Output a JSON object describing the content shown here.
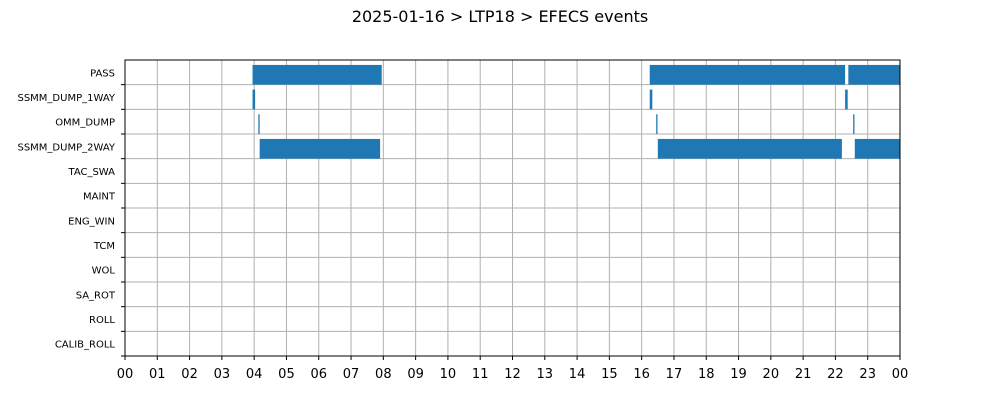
{
  "chart_data": {
    "type": "bar",
    "orientation": "horizontal",
    "title": "2025-01-16 > LTP18 > EFECS events",
    "xlabel": "",
    "ylabel": "",
    "xlim": [
      0,
      24
    ],
    "x_ticks": [
      "00",
      "01",
      "02",
      "03",
      "04",
      "05",
      "06",
      "07",
      "08",
      "09",
      "10",
      "11",
      "12",
      "13",
      "14",
      "15",
      "16",
      "17",
      "18",
      "19",
      "20",
      "21",
      "22",
      "23",
      "00"
    ],
    "categories": [
      "PASS",
      "SSMM_DUMP_1WAY",
      "OMM_DUMP",
      "SSMM_DUMP_2WAY",
      "TAC_SWA",
      "MAINT",
      "ENG_WIN",
      "TCM",
      "WOL",
      "SA_ROT",
      "ROLL",
      "CALIB_ROLL"
    ],
    "grid": true,
    "bar_color": "#1f77b4",
    "series": [
      {
        "category": "PASS",
        "intervals": [
          [
            3.95,
            7.95
          ],
          [
            16.25,
            22.3
          ],
          [
            22.4,
            24.0
          ]
        ]
      },
      {
        "category": "SSMM_DUMP_1WAY",
        "intervals": [
          [
            3.95,
            4.03
          ],
          [
            16.25,
            16.33
          ],
          [
            22.3,
            22.38
          ]
        ]
      },
      {
        "category": "OMM_DUMP",
        "intervals": [
          [
            4.13,
            4.17
          ],
          [
            16.45,
            16.49
          ],
          [
            22.55,
            22.59
          ]
        ]
      },
      {
        "category": "SSMM_DUMP_2WAY",
        "intervals": [
          [
            4.17,
            7.9
          ],
          [
            16.5,
            22.2
          ],
          [
            22.6,
            24.0
          ]
        ]
      },
      {
        "category": "TAC_SWA",
        "intervals": []
      },
      {
        "category": "MAINT",
        "intervals": []
      },
      {
        "category": "ENG_WIN",
        "intervals": []
      },
      {
        "category": "TCM",
        "intervals": []
      },
      {
        "category": "WOL",
        "intervals": []
      },
      {
        "category": "SA_ROT",
        "intervals": []
      },
      {
        "category": "ROLL",
        "intervals": []
      },
      {
        "category": "CALIB_ROLL",
        "intervals": []
      }
    ]
  }
}
